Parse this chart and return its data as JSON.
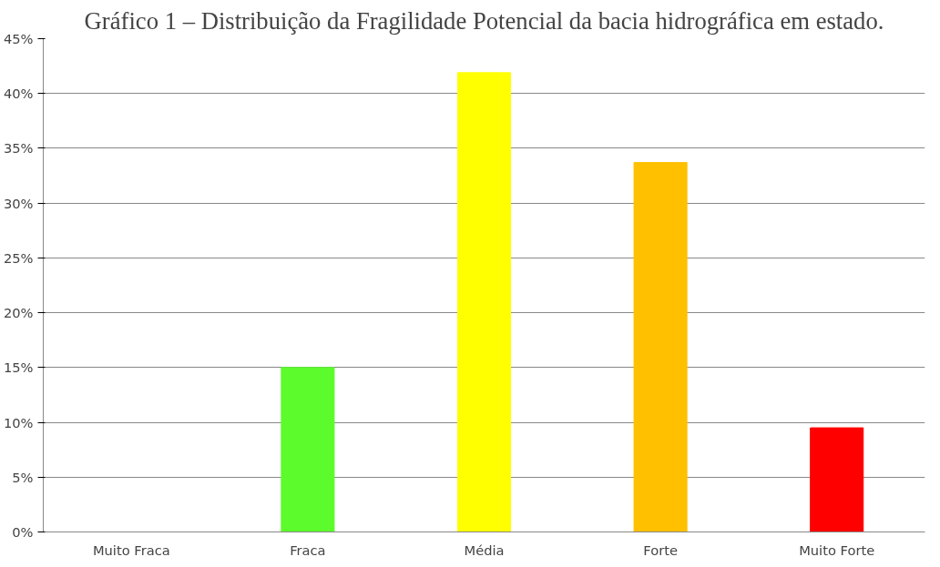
{
  "chart_data": {
    "type": "bar",
    "title": "Gráfico 1 – Distribuição da Fragilidade Potencial da bacia hidrográfica em estado.",
    "categories": [
      "Muito Fraca",
      "Fraca",
      "Média",
      "Forte",
      "Muito Forte"
    ],
    "values": [
      0,
      15.0,
      41.9,
      33.7,
      9.5
    ],
    "colors": [
      "#ffffff",
      "#5cfc2c",
      "#ffff00",
      "#ffc000",
      "#ff0000"
    ],
    "ylim": [
      0,
      45
    ],
    "yticks": [
      {
        "value": 0,
        "label": "0%"
      },
      {
        "value": 5,
        "label": "5%"
      },
      {
        "value": 10,
        "label": "10%"
      },
      {
        "value": 15,
        "label": "15%"
      },
      {
        "value": 20,
        "label": "20%"
      },
      {
        "value": 25,
        "label": "25%"
      },
      {
        "value": 30,
        "label": "30%"
      },
      {
        "value": 35,
        "label": "35%"
      },
      {
        "value": 40,
        "label": "40%"
      },
      {
        "value": 45,
        "label": "45%"
      }
    ],
    "grid": "y"
  }
}
